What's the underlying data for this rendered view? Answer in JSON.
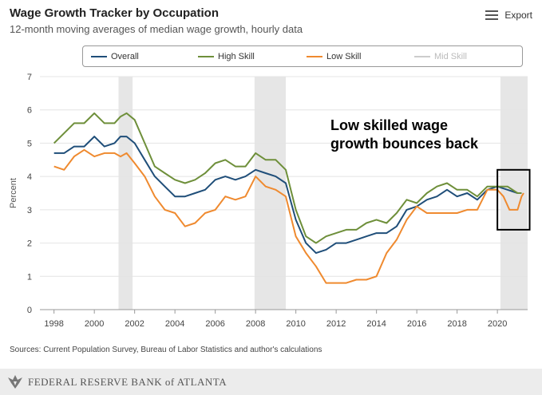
{
  "header": {
    "title": "Wage Growth Tracker by Occupation",
    "subtitle": "12-month moving averages of median wage growth, hourly data",
    "export_label": "Export"
  },
  "legend": [
    {
      "name": "Overall",
      "color": "#1f4e79",
      "enabled": true
    },
    {
      "name": "High Skill",
      "color": "#6e8f3a",
      "enabled": true
    },
    {
      "name": "Low Skill",
      "color": "#ef8a2f",
      "enabled": true
    },
    {
      "name": "Mid Skill",
      "color": "#cccccc",
      "enabled": false
    }
  ],
  "annotation": {
    "line1": "Low skilled wage",
    "line2": "growth bounces back"
  },
  "sources": "Sources: Current Population Survey, Bureau of Labor Statistics and author's calculations",
  "footer": {
    "bank_name": "FEDERAL RESERVE BANK of ATLANTA"
  },
  "chart_data": {
    "type": "line",
    "title": "Wage Growth Tracker by Occupation",
    "ylabel": "Percent",
    "xlabel": "",
    "xlim": [
      1997.3,
      2021.5
    ],
    "ylim": [
      0,
      7
    ],
    "yticks": [
      0,
      1,
      2,
      3,
      4,
      5,
      6,
      7
    ],
    "xticks": [
      1998,
      2000,
      2002,
      2004,
      2006,
      2008,
      2010,
      2012,
      2014,
      2016,
      2018,
      2020
    ],
    "recessions": [
      [
        2001.2,
        2001.9
      ],
      [
        2007.95,
        2009.5
      ],
      [
        2020.15,
        2021.5
      ]
    ],
    "highlight_box": {
      "x": [
        2020.0,
        2021.6
      ],
      "y": [
        2.4,
        4.2
      ]
    },
    "series": [
      {
        "name": "Overall",
        "color": "#1f4e79",
        "points": [
          [
            1998.0,
            4.7
          ],
          [
            1998.5,
            4.7
          ],
          [
            1999.0,
            4.9
          ],
          [
            1999.5,
            4.9
          ],
          [
            2000.0,
            5.2
          ],
          [
            2000.5,
            4.9
          ],
          [
            2001.0,
            5.0
          ],
          [
            2001.3,
            5.2
          ],
          [
            2001.6,
            5.2
          ],
          [
            2002.0,
            5.0
          ],
          [
            2002.5,
            4.5
          ],
          [
            2003.0,
            4.0
          ],
          [
            2003.5,
            3.7
          ],
          [
            2004.0,
            3.4
          ],
          [
            2004.5,
            3.4
          ],
          [
            2005.0,
            3.5
          ],
          [
            2005.5,
            3.6
          ],
          [
            2006.0,
            3.9
          ],
          [
            2006.5,
            4.0
          ],
          [
            2007.0,
            3.9
          ],
          [
            2007.5,
            4.0
          ],
          [
            2008.0,
            4.2
          ],
          [
            2008.5,
            4.1
          ],
          [
            2009.0,
            4.0
          ],
          [
            2009.5,
            3.8
          ],
          [
            2010.0,
            2.7
          ],
          [
            2010.5,
            2.0
          ],
          [
            2011.0,
            1.7
          ],
          [
            2011.5,
            1.8
          ],
          [
            2012.0,
            2.0
          ],
          [
            2012.5,
            2.0
          ],
          [
            2013.0,
            2.1
          ],
          [
            2013.5,
            2.2
          ],
          [
            2014.0,
            2.3
          ],
          [
            2014.5,
            2.3
          ],
          [
            2015.0,
            2.5
          ],
          [
            2015.5,
            3.0
          ],
          [
            2016.0,
            3.1
          ],
          [
            2016.5,
            3.3
          ],
          [
            2017.0,
            3.4
          ],
          [
            2017.5,
            3.6
          ],
          [
            2018.0,
            3.4
          ],
          [
            2018.5,
            3.5
          ],
          [
            2019.0,
            3.3
          ],
          [
            2019.5,
            3.6
          ],
          [
            2020.0,
            3.7
          ],
          [
            2020.5,
            3.6
          ],
          [
            2021.0,
            3.5
          ],
          [
            2021.2,
            3.5
          ]
        ]
      },
      {
        "name": "High Skill",
        "color": "#6e8f3a",
        "points": [
          [
            1998.0,
            5.0
          ],
          [
            1998.5,
            5.3
          ],
          [
            1999.0,
            5.6
          ],
          [
            1999.5,
            5.6
          ],
          [
            2000.0,
            5.9
          ],
          [
            2000.5,
            5.6
          ],
          [
            2001.0,
            5.6
          ],
          [
            2001.3,
            5.8
          ],
          [
            2001.6,
            5.9
          ],
          [
            2002.0,
            5.7
          ],
          [
            2002.5,
            5.0
          ],
          [
            2003.0,
            4.3
          ],
          [
            2003.5,
            4.1
          ],
          [
            2004.0,
            3.9
          ],
          [
            2004.5,
            3.8
          ],
          [
            2005.0,
            3.9
          ],
          [
            2005.5,
            4.1
          ],
          [
            2006.0,
            4.4
          ],
          [
            2006.5,
            4.5
          ],
          [
            2007.0,
            4.3
          ],
          [
            2007.5,
            4.3
          ],
          [
            2008.0,
            4.7
          ],
          [
            2008.5,
            4.5
          ],
          [
            2009.0,
            4.5
          ],
          [
            2009.5,
            4.2
          ],
          [
            2010.0,
            3.0
          ],
          [
            2010.5,
            2.2
          ],
          [
            2011.0,
            2.0
          ],
          [
            2011.5,
            2.2
          ],
          [
            2012.0,
            2.3
          ],
          [
            2012.5,
            2.4
          ],
          [
            2013.0,
            2.4
          ],
          [
            2013.5,
            2.6
          ],
          [
            2014.0,
            2.7
          ],
          [
            2014.5,
            2.6
          ],
          [
            2015.0,
            2.9
          ],
          [
            2015.5,
            3.3
          ],
          [
            2016.0,
            3.2
          ],
          [
            2016.5,
            3.5
          ],
          [
            2017.0,
            3.7
          ],
          [
            2017.5,
            3.8
          ],
          [
            2018.0,
            3.6
          ],
          [
            2018.5,
            3.6
          ],
          [
            2019.0,
            3.4
          ],
          [
            2019.5,
            3.7
          ],
          [
            2020.0,
            3.7
          ],
          [
            2020.5,
            3.7
          ],
          [
            2021.0,
            3.5
          ],
          [
            2021.2,
            3.5
          ]
        ]
      },
      {
        "name": "Low Skill",
        "color": "#ef8a2f",
        "points": [
          [
            1998.0,
            4.3
          ],
          [
            1998.5,
            4.2
          ],
          [
            1999.0,
            4.6
          ],
          [
            1999.5,
            4.8
          ],
          [
            2000.0,
            4.6
          ],
          [
            2000.5,
            4.7
          ],
          [
            2001.0,
            4.7
          ],
          [
            2001.3,
            4.6
          ],
          [
            2001.6,
            4.7
          ],
          [
            2002.0,
            4.4
          ],
          [
            2002.5,
            4.0
          ],
          [
            2003.0,
            3.4
          ],
          [
            2003.5,
            3.0
          ],
          [
            2004.0,
            2.9
          ],
          [
            2004.5,
            2.5
          ],
          [
            2005.0,
            2.6
          ],
          [
            2005.5,
            2.9
          ],
          [
            2006.0,
            3.0
          ],
          [
            2006.5,
            3.4
          ],
          [
            2007.0,
            3.3
          ],
          [
            2007.5,
            3.4
          ],
          [
            2008.0,
            4.0
          ],
          [
            2008.5,
            3.7
          ],
          [
            2009.0,
            3.6
          ],
          [
            2009.5,
            3.4
          ],
          [
            2010.0,
            2.2
          ],
          [
            2010.5,
            1.7
          ],
          [
            2011.0,
            1.3
          ],
          [
            2011.5,
            0.8
          ],
          [
            2012.0,
            0.8
          ],
          [
            2012.5,
            0.8
          ],
          [
            2013.0,
            0.9
          ],
          [
            2013.5,
            0.9
          ],
          [
            2014.0,
            1.0
          ],
          [
            2014.5,
            1.7
          ],
          [
            2015.0,
            2.1
          ],
          [
            2015.5,
            2.7
          ],
          [
            2016.0,
            3.1
          ],
          [
            2016.5,
            2.9
          ],
          [
            2017.0,
            2.9
          ],
          [
            2017.5,
            2.9
          ],
          [
            2018.0,
            2.9
          ],
          [
            2018.5,
            3.0
          ],
          [
            2019.0,
            3.0
          ],
          [
            2019.5,
            3.6
          ],
          [
            2020.0,
            3.6
          ],
          [
            2020.3,
            3.4
          ],
          [
            2020.6,
            3.0
          ],
          [
            2021.0,
            3.0
          ],
          [
            2021.2,
            3.4
          ],
          [
            2021.3,
            3.5
          ]
        ]
      }
    ]
  }
}
